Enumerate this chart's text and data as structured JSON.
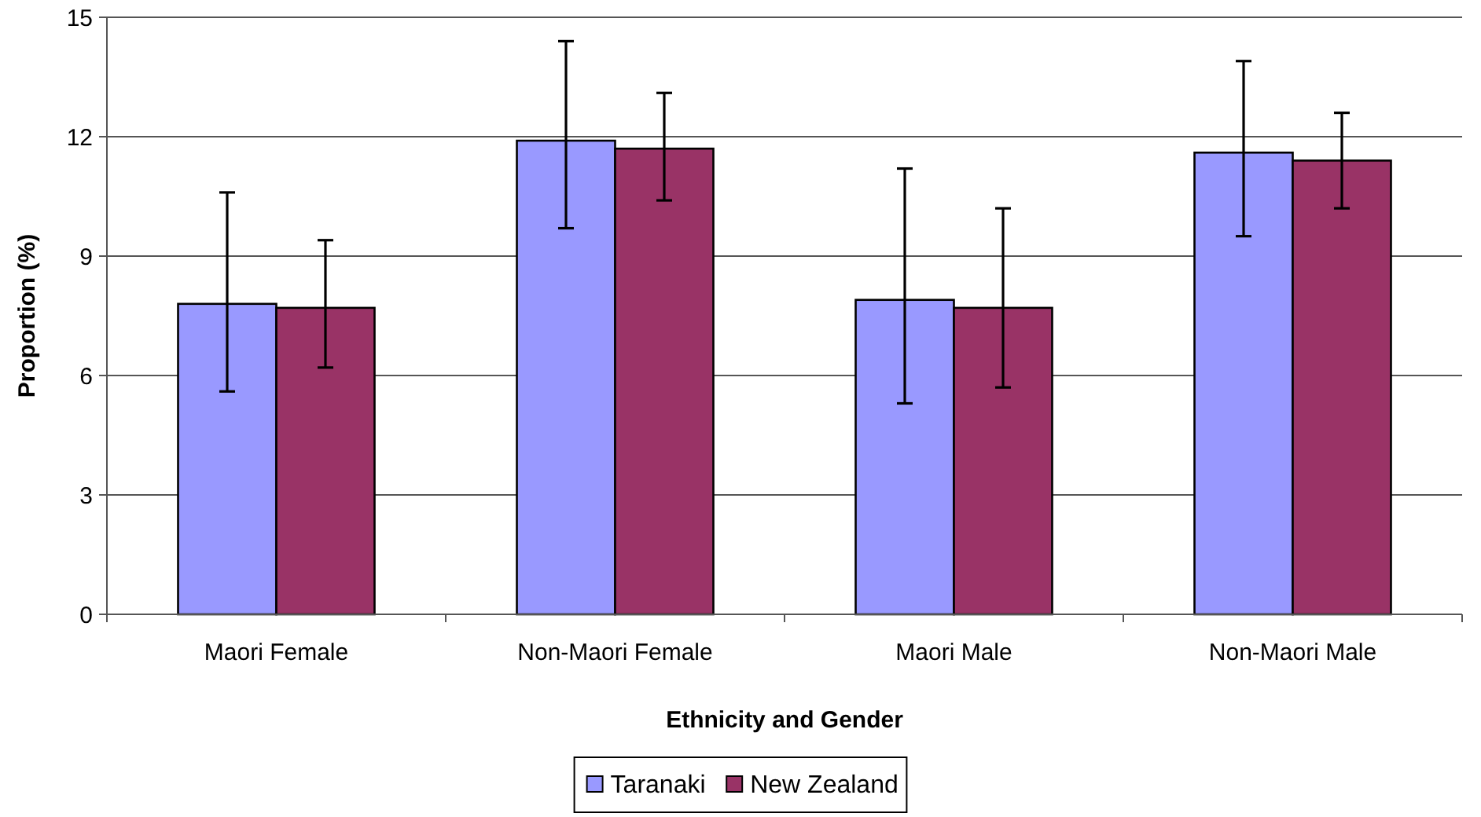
{
  "chart_data": {
    "type": "bar",
    "xlabel": "Ethnicity and Gender",
    "ylabel": "Proportion (%)",
    "categories": [
      "Maori Female",
      "Non-Maori Female",
      "Maori Male",
      "Non-Maori Male"
    ],
    "series": [
      {
        "name": "Taranaki",
        "color": "#9999ff",
        "values": [
          7.8,
          11.9,
          7.9,
          11.6
        ],
        "errors": [
          [
            5.6,
            10.6
          ],
          [
            9.7,
            14.4
          ],
          [
            5.3,
            11.2
          ],
          [
            9.5,
            13.9
          ]
        ]
      },
      {
        "name": "New Zealand",
        "color": "#993366",
        "values": [
          7.7,
          11.7,
          7.7,
          11.4
        ],
        "errors": [
          [
            6.2,
            9.4
          ],
          [
            10.4,
            13.1
          ],
          [
            5.7,
            10.2
          ],
          [
            10.2,
            12.6
          ]
        ]
      }
    ],
    "ylim": [
      0,
      15
    ],
    "yticks": [
      0,
      3,
      6,
      9,
      12,
      15
    ],
    "grid": "y",
    "legend": "bottom"
  }
}
